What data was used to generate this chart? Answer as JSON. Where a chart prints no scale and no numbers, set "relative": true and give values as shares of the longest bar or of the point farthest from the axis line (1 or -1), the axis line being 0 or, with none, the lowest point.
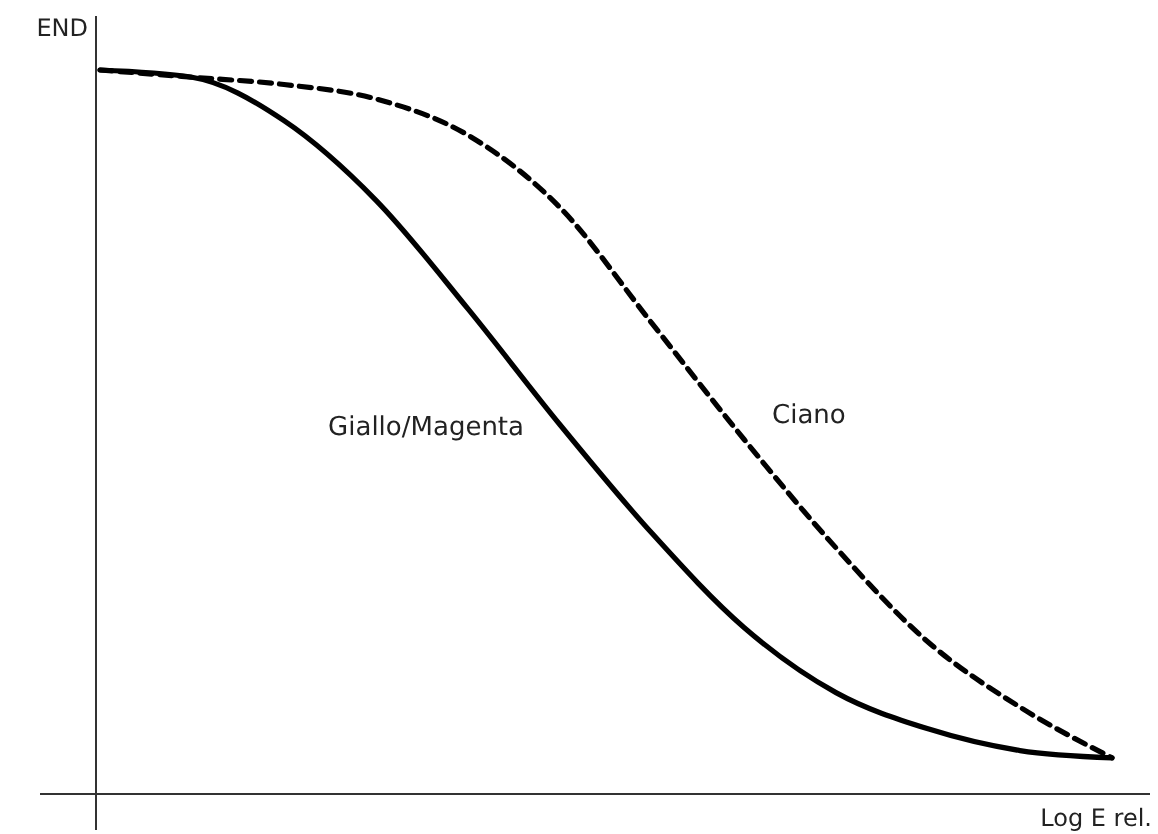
{
  "chart_data": {
    "type": "line",
    "relative": true,
    "ylabel": "END",
    "xlabel": "Log E rel.",
    "categories": [
      null,
      null,
      null,
      null,
      null,
      null,
      null,
      null,
      null,
      null,
      null,
      null
    ],
    "series": [
      {
        "name": "Giallo/Magenta",
        "color": "#000000",
        "line_style": "solid",
        "values": [
          1,
          0.99,
          0.93,
          0.82,
          0.67,
          0.51,
          0.36,
          0.23,
          0.14,
          0.09,
          0.06,
          0.05
        ]
      },
      {
        "name": "Ciano",
        "color": "#000000",
        "line_style": "dashed",
        "values": [
          1,
          0.99,
          0.98,
          0.96,
          0.91,
          0.81,
          0.65,
          0.49,
          0.34,
          0.21,
          0.12,
          0.05
        ]
      }
    ]
  }
}
